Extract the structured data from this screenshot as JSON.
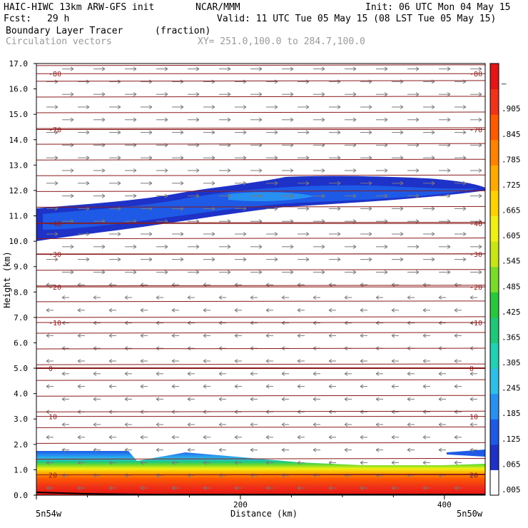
{
  "header": {
    "model": "HAIC-HIWC 13km ARW-GFS init",
    "org": "NCAR/MMM",
    "init": "Init: 06 UTC Mon 04 May 15",
    "fcst_label": "Fcst:",
    "fcst_value": "29 h",
    "valid": "Valid: 11 UTC Tue 05 May 15 (08 LST Tue 05 May 15)",
    "field": "Boundary Layer Tracer",
    "field_units": "(fraction)",
    "vectors": "Circulation vectors",
    "xy": "XY= 251.0,100.0 to 284.7,100.0"
  },
  "colors": {
    "contour": "#8b1a1a",
    "vector": "#7a7a7a",
    "terrain": "#000000"
  },
  "chart_data": {
    "type": "heatmap",
    "ylabel": "Height (km)",
    "xlabel": "Distance (km)",
    "ylim": [
      0,
      17
    ],
    "xlim": [
      0,
      440
    ],
    "yticks": [
      "0.0",
      "1.0",
      "2.0",
      "3.0",
      "4.0",
      "5.0",
      "6.0",
      "7.0",
      "8.0",
      "9.0",
      "10.0",
      "11.0",
      "12.0",
      "13.0",
      "14.0",
      "15.0",
      "16.0",
      "17.0"
    ],
    "xticks": [
      "200",
      "400"
    ],
    "x_left_label": "5n54w",
    "x_right_label": "5n50w",
    "colorbar": {
      "labels": [
        ".005",
        ".065",
        ".125",
        ".185",
        ".245",
        ".305",
        ".365",
        ".425",
        ".485",
        ".545",
        ".605",
        ".665",
        ".725",
        ".785",
        ".845",
        ".905",
        "–"
      ],
      "colors": [
        "#ffffff",
        "#1e32c8",
        "#1e5ae6",
        "#2890f0",
        "#2cc0e8",
        "#20d2b4",
        "#1ec878",
        "#28c83c",
        "#78dc28",
        "#c8e614",
        "#f0f014",
        "#ffd200",
        "#ffaa00",
        "#ff8200",
        "#ff5a00",
        "#f03218",
        "#e61414"
      ]
    },
    "temperature_contours": [
      {
        "label": "-80",
        "height_km": 16.6
      },
      {
        "label": "-70",
        "height_km": 14.4
      },
      {
        "label": "-40",
        "height_km": 10.7
      },
      {
        "label": "-30",
        "height_km": 9.5
      },
      {
        "label": "-20",
        "height_km": 8.2
      },
      {
        "label": "-10",
        "height_km": 6.8
      },
      {
        "label": "0",
        "height_km": 5.0
      },
      {
        "label": "10",
        "height_km": 3.1
      },
      {
        "label": "20",
        "height_km": 0.8
      }
    ]
  }
}
